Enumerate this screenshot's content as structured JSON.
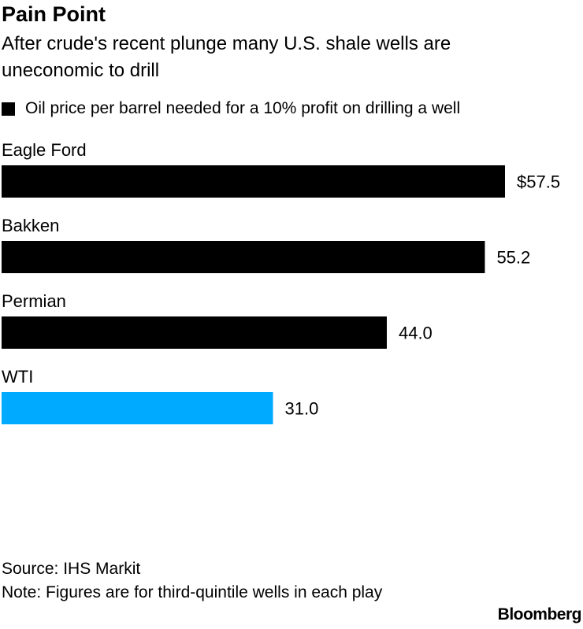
{
  "header": {
    "title": "Pain Point",
    "subtitle": "After crude's recent plunge many U.S. shale wells are uneconomic to drill"
  },
  "legend": {
    "label": "Oil price per barrel needed for a 10% profit on drilling a well",
    "color": "#000000"
  },
  "chart_data": {
    "type": "bar",
    "orientation": "horizontal",
    "title": "Pain Point",
    "subtitle": "After crude's recent plunge many U.S. shale wells are uneconomic to drill",
    "categories": [
      "Eagle Ford",
      "Bakken",
      "Permian",
      "WTI"
    ],
    "values": [
      57.5,
      55.2,
      44.0,
      31.0
    ],
    "value_labels": [
      "$57.5",
      "55.2",
      "44.0",
      "31.0"
    ],
    "colors": [
      "#000000",
      "#000000",
      "#000000",
      "#00aaff"
    ],
    "series": [
      {
        "name": "Oil price per barrel needed for a 10% profit on drilling a well",
        "values": [
          57.5,
          55.2,
          44.0,
          31.0
        ]
      }
    ],
    "xlim": [
      0,
      57.5
    ],
    "grid": false,
    "legend_position": "top-left"
  },
  "footer": {
    "source": "Source: IHS Markit",
    "note": "Note: Figures are for third-quintile wells in each play"
  },
  "brand": "Bloomberg"
}
